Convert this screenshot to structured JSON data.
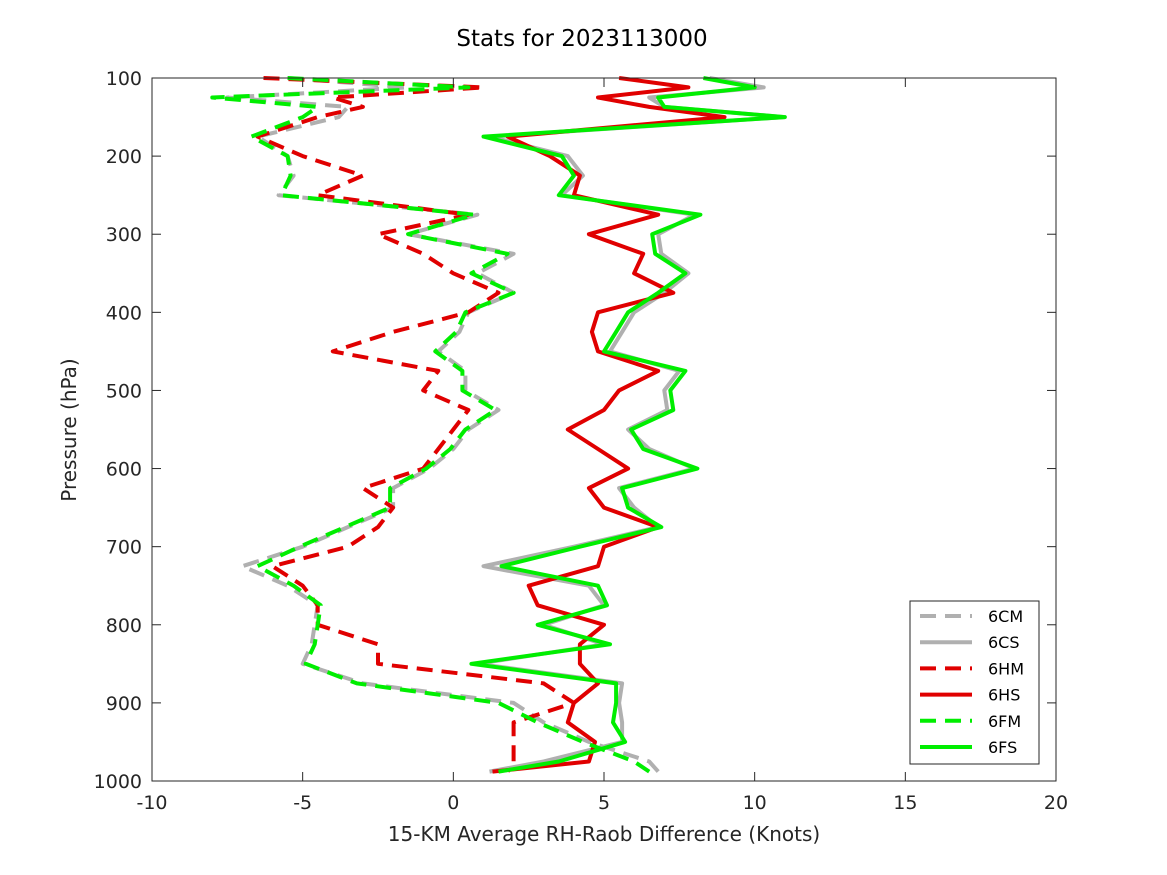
{
  "chart_data": {
    "type": "line",
    "title": "Stats for 2023113000",
    "xlabel": "15-KM Average RH-Raob Difference (Knots)",
    "ylabel": "Pressure (hPa)",
    "xlim": [
      -10,
      20
    ],
    "ylim": [
      100,
      1000
    ],
    "y_reversed": true,
    "grid": false,
    "legend_position": "bottom-right",
    "xticks": [
      -10,
      -5,
      0,
      5,
      10,
      15,
      20
    ],
    "yticks": [
      100,
      200,
      300,
      400,
      500,
      600,
      700,
      800,
      900,
      1000
    ],
    "y": [
      100,
      112,
      125,
      137,
      150,
      175,
      200,
      225,
      250,
      275,
      300,
      325,
      350,
      375,
      400,
      425,
      450,
      475,
      500,
      525,
      550,
      575,
      600,
      625,
      650,
      675,
      700,
      725,
      750,
      775,
      800,
      825,
      850,
      875,
      900,
      925,
      950,
      975,
      988
    ],
    "series": [
      {
        "name": "6CM",
        "style": "dashed",
        "color": "#b0b0b0",
        "values": [
          -5.5,
          -1.5,
          -7.5,
          -3.5,
          -3.8,
          -6.5,
          -5.5,
          -5.3,
          -5.8,
          0.8,
          -1.5,
          2.0,
          0.8,
          2.0,
          0.5,
          0.2,
          -0.5,
          0.4,
          0.4,
          1.5,
          0.5,
          0.0,
          -0.8,
          -2.0,
          -2.0,
          -3.5,
          -5.0,
          -7.0,
          -5.5,
          -4.5,
          -4.6,
          -4.7,
          -5.0,
          -3.0,
          2.0,
          3.0,
          4.5,
          6.5,
          6.8
        ]
      },
      {
        "name": "6CS",
        "style": "solid",
        "color": "#b0b0b0",
        "values": [
          8.5,
          10.3,
          6.5,
          7.0,
          11.0,
          1.2,
          3.8,
          4.3,
          3.6,
          8.0,
          6.8,
          6.9,
          7.8,
          7.0,
          6.0,
          5.6,
          5.2,
          7.5,
          7.0,
          7.1,
          5.8,
          6.5,
          8.0,
          5.5,
          6.0,
          6.8,
          4.0,
          1.0,
          4.5,
          5.0,
          3.0,
          5.0,
          0.8,
          5.6,
          5.5,
          5.6,
          5.6,
          3.0,
          1.2
        ]
      },
      {
        "name": "6HM",
        "style": "dashed",
        "color": "#e00000",
        "values": [
          -6.3,
          1.0,
          -4.0,
          -3.0,
          -4.5,
          -6.5,
          -5.0,
          -3.0,
          -4.5,
          0.5,
          -2.5,
          -1.0,
          0.0,
          1.5,
          0.5,
          -2.0,
          -4.0,
          -0.5,
          -1.0,
          0.5,
          0.0,
          -0.5,
          -1.0,
          -3.0,
          -2.0,
          -2.5,
          -3.5,
          -6.0,
          -5.0,
          -4.5,
          -4.5,
          -2.5,
          -2.5,
          3.0,
          4.0,
          2.0,
          2.0,
          2.0,
          1.8
        ]
      },
      {
        "name": "6HS",
        "style": "solid",
        "color": "#e00000",
        "values": [
          5.5,
          7.8,
          4.8,
          6.5,
          9.0,
          1.8,
          3.2,
          4.2,
          4.0,
          6.8,
          4.5,
          6.3,
          6.0,
          7.3,
          4.8,
          4.6,
          4.8,
          6.8,
          5.5,
          5.0,
          3.8,
          4.8,
          5.8,
          4.5,
          5.0,
          6.8,
          5.0,
          4.8,
          2.5,
          2.8,
          5.0,
          4.2,
          4.2,
          4.8,
          4.0,
          3.8,
          4.7,
          4.5,
          1.3
        ]
      },
      {
        "name": "6FM",
        "style": "dashed",
        "color": "#00ee00",
        "values": [
          -5.5,
          0.5,
          -8.0,
          -4.5,
          -5.0,
          -6.7,
          -5.5,
          -5.4,
          -5.7,
          0.7,
          -1.5,
          1.8,
          0.6,
          2.0,
          0.4,
          0.1,
          -0.6,
          0.3,
          0.3,
          1.4,
          0.4,
          -0.1,
          -0.9,
          -2.1,
          -2.1,
          -3.6,
          -5.1,
          -6.5,
          -5.3,
          -4.4,
          -4.5,
          -4.6,
          -4.9,
          -3.2,
          1.5,
          2.8,
          4.3,
          6.0,
          6.5
        ]
      },
      {
        "name": "6FS",
        "style": "solid",
        "color": "#00ee00",
        "values": [
          8.3,
          10.0,
          6.8,
          7.0,
          11.0,
          1.0,
          3.6,
          4.0,
          3.5,
          8.2,
          6.6,
          6.7,
          7.7,
          6.8,
          5.8,
          5.4,
          5.0,
          7.7,
          7.2,
          7.3,
          5.9,
          6.3,
          8.1,
          5.6,
          5.8,
          6.9,
          4.2,
          1.6,
          4.8,
          5.1,
          2.8,
          5.2,
          0.6,
          5.4,
          5.4,
          5.3,
          5.7,
          3.5,
          1.5
        ]
      }
    ]
  }
}
